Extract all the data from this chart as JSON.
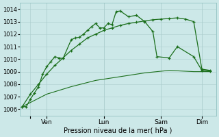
{
  "background_color": "#cce8e8",
  "grid_color": "#aacccc",
  "line_color": "#1a6e1a",
  "xlabel": "Pression niveau de la mer( hPa )",
  "ylim": [
    1005.5,
    1014.5
  ],
  "yticks": [
    1006,
    1007,
    1008,
    1009,
    1010,
    1011,
    1012,
    1013,
    1014
  ],
  "xtick_positions": [
    4,
    12,
    40,
    68,
    88
  ],
  "xtick_labels": [
    "",
    "Ven",
    "Lun",
    "Sam",
    "Dim"
  ],
  "line1_x": [
    0,
    2,
    4,
    6,
    8,
    10,
    12,
    14,
    16,
    18,
    20,
    24,
    26,
    28,
    30,
    32,
    34,
    36,
    38,
    40,
    42,
    44,
    46,
    48,
    52,
    56,
    60,
    64,
    66,
    72,
    76,
    84,
    88,
    92
  ],
  "line1_y": [
    1006.2,
    1006.2,
    1006.8,
    1007.3,
    1007.8,
    1008.8,
    1009.4,
    1009.8,
    1010.2,
    1010.1,
    1010.05,
    1011.55,
    1011.7,
    1011.75,
    1012.0,
    1012.3,
    1012.6,
    1012.85,
    1012.5,
    1012.5,
    1012.85,
    1012.75,
    1013.8,
    1013.85,
    1013.4,
    1013.5,
    1013.0,
    1012.2,
    1010.2,
    1010.1,
    1011.0,
    1010.2,
    1009.1,
    1009.05
  ],
  "line2_x": [
    0,
    4,
    8,
    12,
    16,
    20,
    24,
    28,
    32,
    36,
    40,
    44,
    48,
    52,
    56,
    60,
    64,
    68,
    72,
    76,
    80,
    84,
    88,
    92
  ],
  "line2_y": [
    1006.2,
    1007.2,
    1008.0,
    1008.8,
    1009.5,
    1010.1,
    1010.7,
    1011.2,
    1011.7,
    1012.0,
    1012.3,
    1012.5,
    1012.7,
    1012.85,
    1012.95,
    1013.05,
    1013.15,
    1013.2,
    1013.25,
    1013.3,
    1013.2,
    1013.0,
    1009.2,
    1009.1
  ],
  "line3_x": [
    0,
    12,
    24,
    36,
    48,
    60,
    72,
    84,
    92
  ],
  "line3_y": [
    1006.2,
    1007.2,
    1007.8,
    1008.3,
    1008.6,
    1008.9,
    1009.1,
    1009.0,
    1009.0
  ],
  "xlim": [
    -1,
    95
  ]
}
